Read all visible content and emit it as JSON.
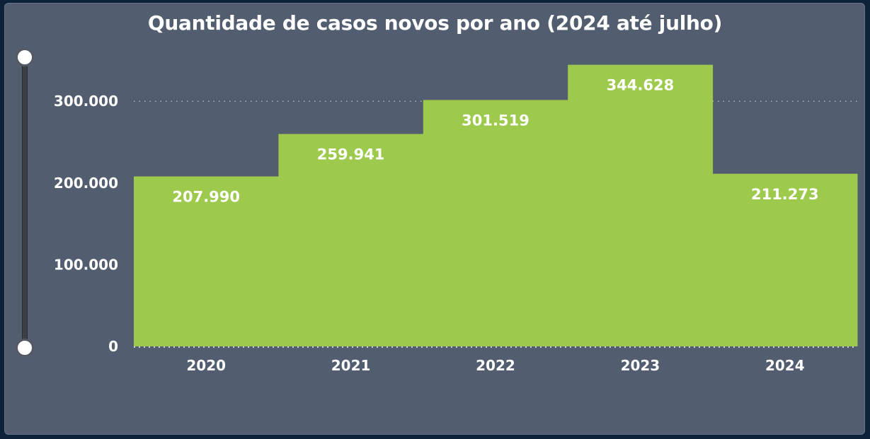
{
  "title": "Quantidade de casos novos por ano (2024 até julho)",
  "colors": {
    "bar": "#9dca4c",
    "background": "#525d6f",
    "page": "#0c2238",
    "text": "#ffffff",
    "grid": "#a9b0bd"
  },
  "chart_data": {
    "type": "bar",
    "title": "Quantidade de casos novos por ano (2024 até julho)",
    "categories": [
      "2020",
      "2021",
      "2022",
      "2023",
      "2024"
    ],
    "values": [
      207990,
      259941,
      301519,
      344628,
      211273
    ],
    "data_labels": [
      "207.990",
      "259.941",
      "301.519",
      "344.628",
      "211.273"
    ],
    "yticks": [
      0,
      100000,
      200000,
      300000
    ],
    "ytick_labels": [
      "0",
      "100.000",
      "200.000",
      "300.000"
    ],
    "ylim": [
      0,
      350000
    ],
    "grid": true,
    "legend": "none"
  }
}
